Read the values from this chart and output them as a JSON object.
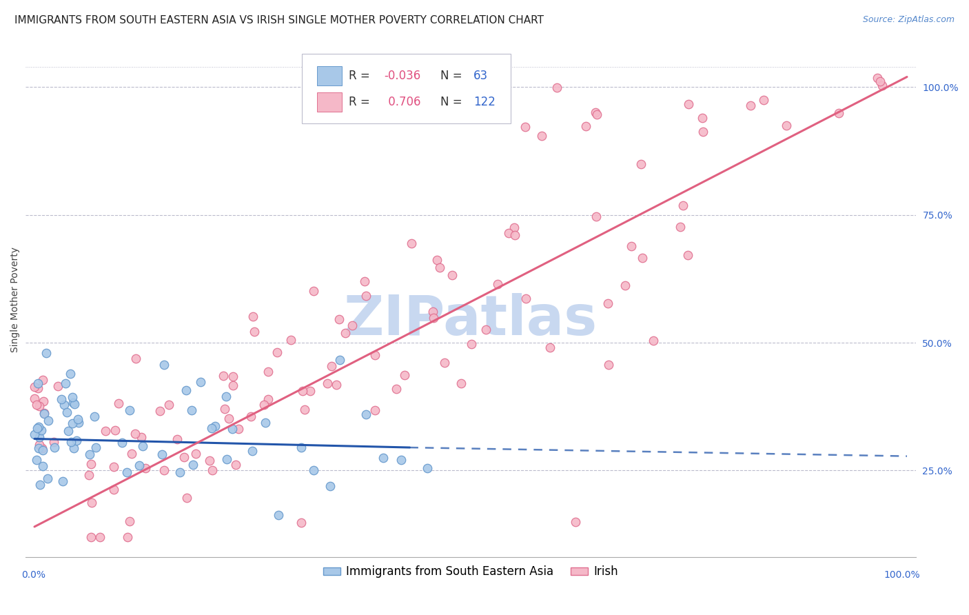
{
  "title": "IMMIGRANTS FROM SOUTH EASTERN ASIA VS IRISH SINGLE MOTHER POVERTY CORRELATION CHART",
  "source": "Source: ZipAtlas.com",
  "ylabel": "Single Mother Poverty",
  "legend_blue_label": "Immigrants from South Eastern Asia",
  "legend_pink_label": "Irish",
  "R_blue": -0.036,
  "N_blue": 63,
  "R_pink": 0.706,
  "N_pink": 122,
  "blue_color": "#A8C8E8",
  "blue_edge": "#6699CC",
  "pink_color": "#F5B8C8",
  "pink_edge": "#E07090",
  "blue_line_color": "#2255AA",
  "pink_line_color": "#E06080",
  "background_color": "#FFFFFF",
  "grid_color": "#BBBBCC",
  "watermark_color": "#C8D8F0",
  "title_fontsize": 11,
  "axis_label_fontsize": 10,
  "tick_fontsize": 10,
  "legend_fontsize": 12,
  "source_fontsize": 9,
  "marker_size": 9,
  "r_val_color": "#E05080",
  "n_val_color": "#3366CC",
  "legend_text_color": "#333333"
}
